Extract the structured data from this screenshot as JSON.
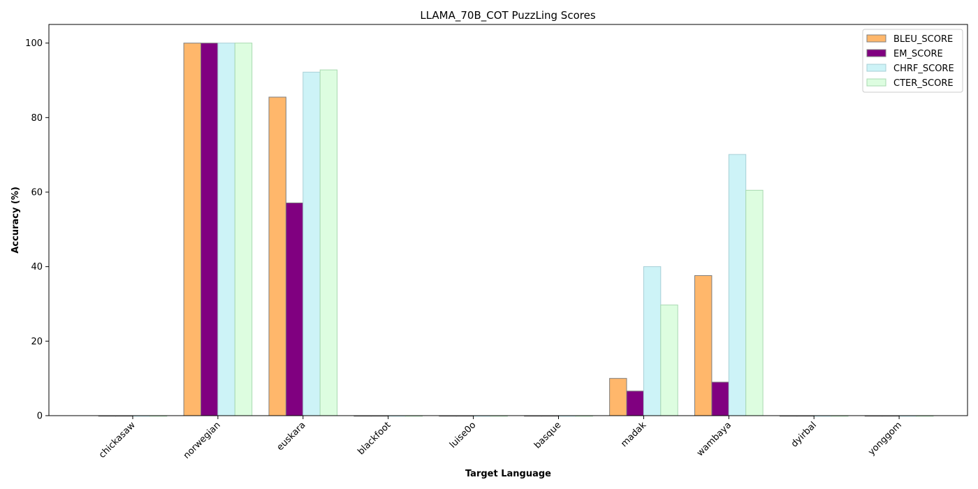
{
  "chart_data": {
    "type": "bar",
    "title": "LLAMA_70B_COT PuzzLing Scores",
    "xlabel": "Target Language",
    "ylabel": "Accuracy (%)",
    "categories": [
      "chickasaw",
      "norwegian",
      "euskara",
      "blackfoot",
      "luise0o",
      "basque",
      "madak",
      "wambaya",
      "dyirbal",
      "yonggom"
    ],
    "series": [
      {
        "name": "BLEU_SCORE",
        "color": "#ffb76b",
        "edge": "#7f7f7f",
        "values": [
          0,
          100,
          85.5,
          0,
          0,
          0,
          10,
          37.6,
          0,
          0
        ]
      },
      {
        "name": "EM_SCORE",
        "color": "#800080",
        "edge": "#7f7f7f",
        "values": [
          0,
          100,
          57.1,
          0,
          0,
          0,
          6.6,
          9.0,
          0,
          0
        ]
      },
      {
        "name": "CHRF_SCORE",
        "color": "#cdf3f7",
        "edge": "#a7cfd6",
        "values": [
          0,
          100,
          92.2,
          0,
          0,
          0,
          40.0,
          70.1,
          0,
          0
        ]
      },
      {
        "name": "CTER_SCORE",
        "color": "#ddfde0",
        "edge": "#a8d9b0",
        "values": [
          0,
          100,
          92.8,
          0,
          0,
          0,
          29.7,
          60.5,
          0,
          0
        ]
      }
    ],
    "ylim": [
      0,
      105
    ],
    "yticks": [
      0,
      20,
      40,
      60,
      80,
      100
    ],
    "grid": false,
    "legend": "top-right"
  }
}
